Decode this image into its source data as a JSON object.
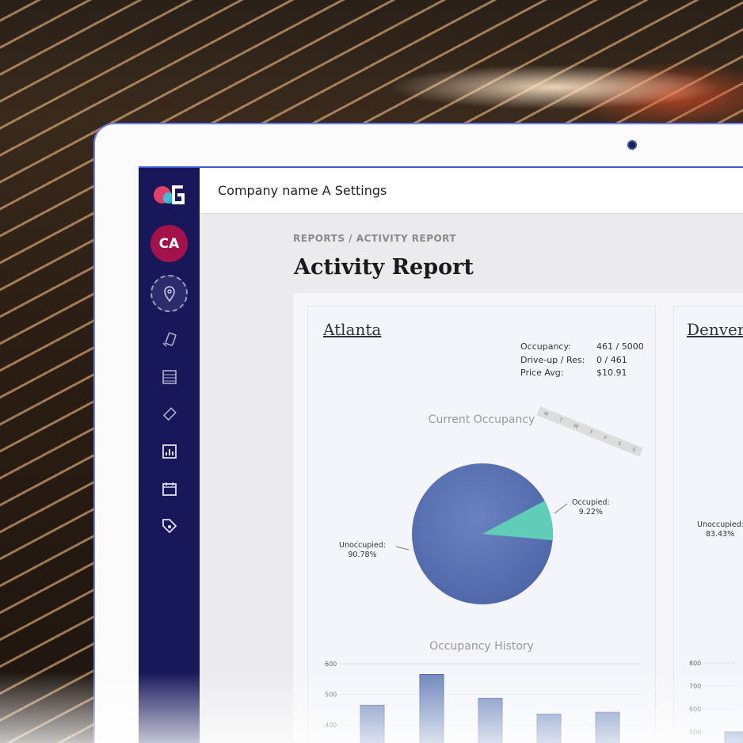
{
  "header": {
    "title": "Company name A Settings"
  },
  "sidebar": {
    "avatar": "CA",
    "icons": [
      "logo-icon",
      "location-pin-icon",
      "devices-icon",
      "list-icon",
      "ticket-icon",
      "chart-icon",
      "calendar-icon",
      "tag-icon"
    ]
  },
  "breadcrumb": "REPORTS / ACTIVITY REPORT",
  "page_title": "Activity Report",
  "colors": {
    "sidebar": "#17175a",
    "avatar": "#a3124a",
    "unoccupied": "#5a74b4",
    "occupied": "#5fcdb8",
    "bars": "#6f88bd"
  },
  "atlanta": {
    "name": "Atlanta",
    "stats": [
      {
        "label": "Occupancy:",
        "value": "461 / 5000"
      },
      {
        "label": "Drive-up / Res:",
        "value": "0 / 461"
      },
      {
        "label": "Price Avg:",
        "value": "$10.91"
      }
    ],
    "days": [
      "M",
      "T",
      "W",
      "T",
      "F",
      "S",
      "S"
    ],
    "pie_title": "Current Occupancy",
    "occupied_label": "Occupied:",
    "occupied_pct": "9.22%",
    "unoccupied_label": "Unoccupied:",
    "unoccupied_pct": "90.78%",
    "history_title": "Occupancy History"
  },
  "denver": {
    "name": "Denver",
    "unoccupied_label": "Unoccupied:",
    "unoccupied_pct": "83.43%"
  },
  "chart_data": [
    {
      "type": "pie",
      "title": "Current Occupancy",
      "labels": [
        "Occupied",
        "Unoccupied"
      ],
      "values": [
        9.22,
        90.78
      ]
    },
    {
      "type": "bar",
      "title": "Occupancy History",
      "yticks": [
        "600",
        "500",
        "400"
      ],
      "ylim": [
        370,
        620
      ],
      "values": [
        464,
        565,
        487,
        435,
        441
      ]
    },
    {
      "type": "bar",
      "yticks": [
        "800",
        "700",
        "600",
        "500"
      ],
      "ylim": [
        480,
        820
      ],
      "values": [
        500
      ]
    }
  ]
}
